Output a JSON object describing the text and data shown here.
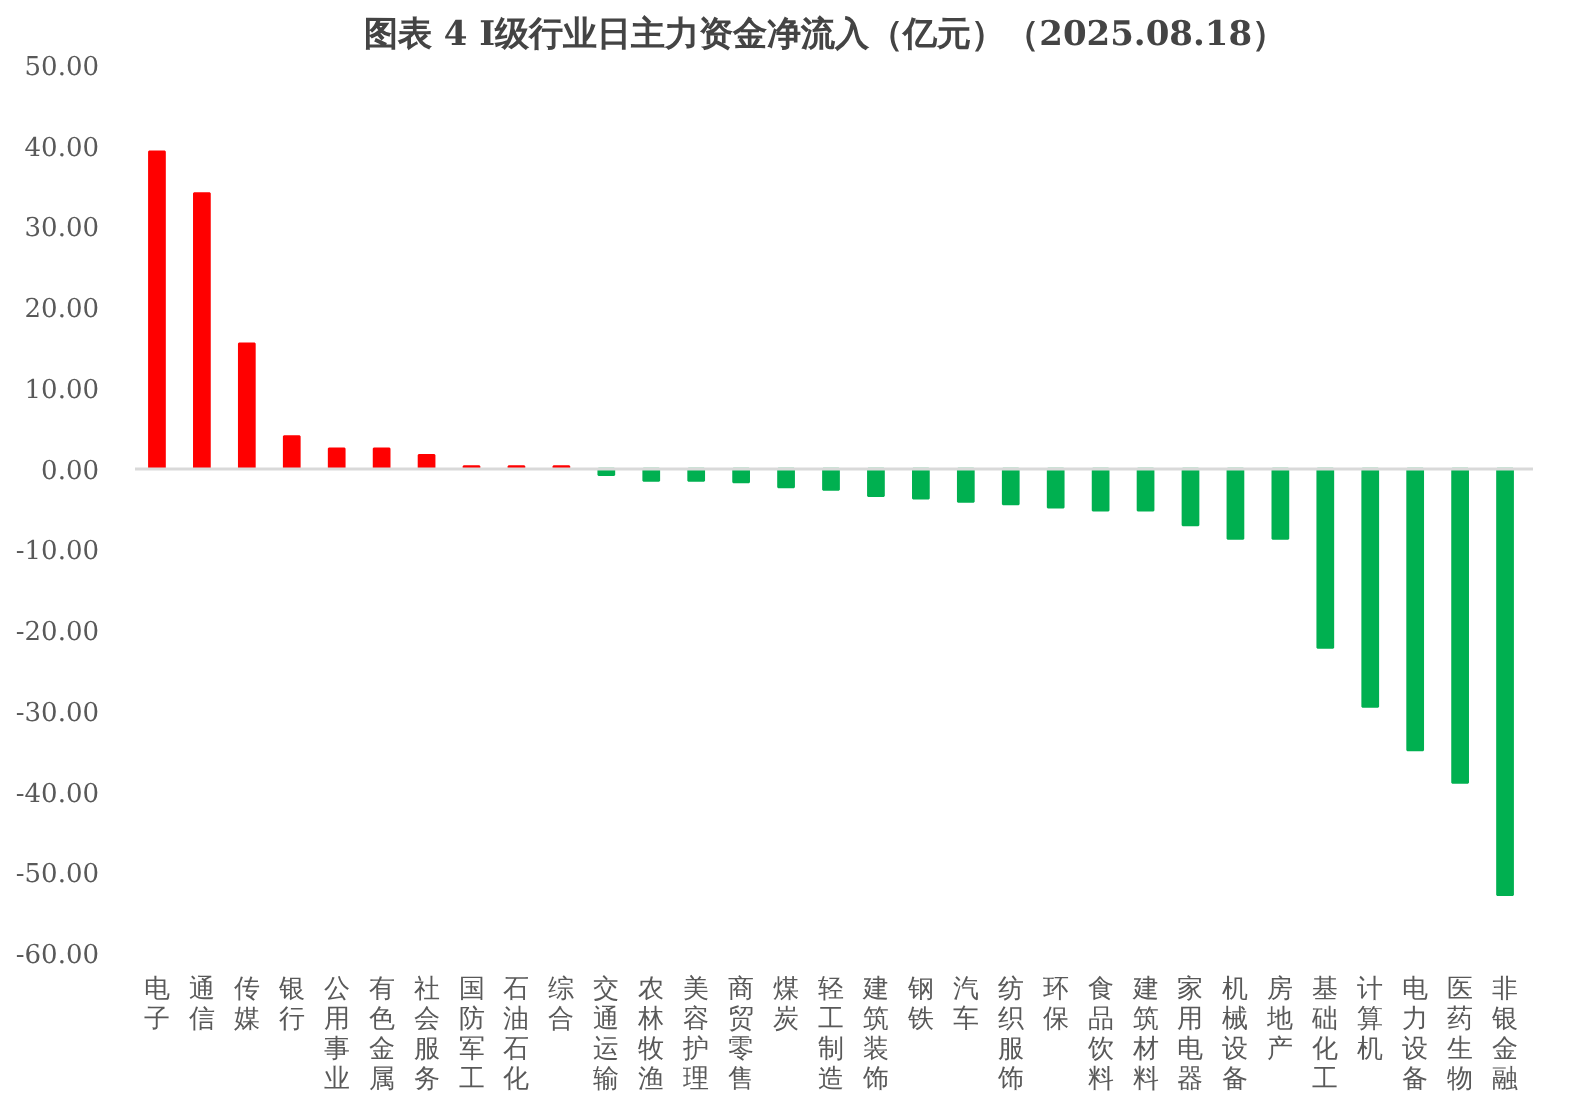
{
  "chart_data": {
    "type": "bar",
    "title": "图表 4  I级行业日主力资金净流入（亿元）（2025.08.18）",
    "categories": [
      "电子",
      "通信",
      "传媒",
      "银行",
      "公用事业",
      "有色金属",
      "社会服务",
      "国防军工",
      "石油石化",
      "综合",
      "交通运输",
      "农林牧渔",
      "美容护理",
      "商贸零售",
      "煤炭",
      "轻工制造",
      "建筑装饰",
      "钢铁",
      "汽车",
      "纺织服饰",
      "环保",
      "食品饮料",
      "建筑材料",
      "家用电器",
      "机械设备",
      "房地产",
      "基础化工",
      "计算机",
      "电力设备",
      "医药生物",
      "非银金融"
    ],
    "values": [
      39.3,
      34.1,
      15.5,
      4.0,
      2.5,
      2.5,
      1.7,
      0.3,
      0.3,
      0.3,
      -0.8,
      -1.5,
      -1.5,
      -1.7,
      -2.3,
      -2.6,
      -3.4,
      -3.7,
      -4.1,
      -4.4,
      -4.8,
      -5.2,
      -5.2,
      -7.0,
      -8.7,
      -8.7,
      -22.2,
      -29.5,
      -34.9,
      -38.9,
      -52.8
    ],
    "colors": [
      "#ff0000",
      "#ff0000",
      "#ff0000",
      "#ff0000",
      "#ff0000",
      "#ff0000",
      "#ff0000",
      "#ff0000",
      "#ff0000",
      "#ff0000",
      "#00b050",
      "#00b050",
      "#00b050",
      "#00b050",
      "#00b050",
      "#00b050",
      "#00b050",
      "#00b050",
      "#00b050",
      "#00b050",
      "#00b050",
      "#00b050",
      "#00b050",
      "#00b050",
      "#00b050",
      "#00b050",
      "#00b050",
      "#00b050",
      "#00b050",
      "#00b050",
      "#00b050"
    ],
    "ylim": [
      -60,
      50
    ],
    "yticks": [
      {
        "value": -60,
        "label": "-60.00"
      },
      {
        "value": -50,
        "label": "-50.00"
      },
      {
        "value": -40,
        "label": "-40.00"
      },
      {
        "value": -30,
        "label": "-30.00"
      },
      {
        "value": -20,
        "label": "-20.00"
      },
      {
        "value": -10,
        "label": "-10.00"
      },
      {
        "value": 0,
        "label": "0.00"
      },
      {
        "value": 10,
        "label": "10.00"
      },
      {
        "value": 20,
        "label": "20.00"
      },
      {
        "value": 30,
        "label": "30.00"
      },
      {
        "value": 40,
        "label": "40.00"
      },
      {
        "value": 50,
        "label": "50.00"
      }
    ],
    "stacked": false
  }
}
